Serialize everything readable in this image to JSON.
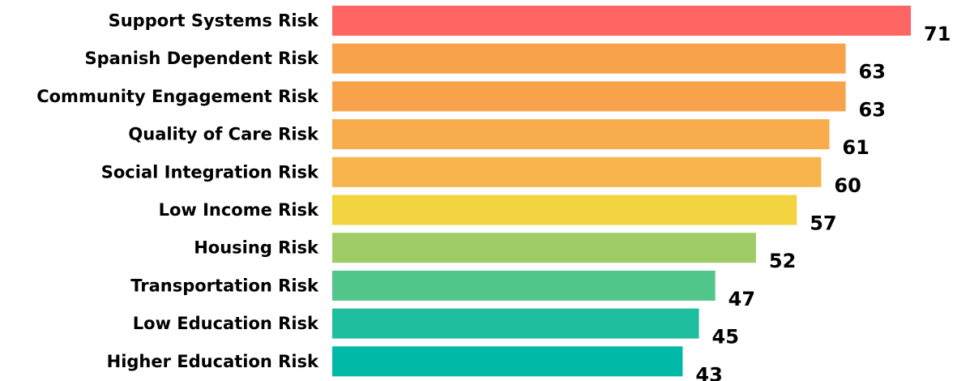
{
  "chart_data": {
    "type": "bar",
    "orientation": "horizontal",
    "title": "",
    "xlabel": "",
    "ylabel": "",
    "grid": false,
    "legend": "none",
    "categories": [
      "Support Systems Risk",
      "Spanish Dependent Risk",
      "Community Engagement Risk",
      "Quality of Care Risk",
      "Social Integration Risk",
      "Low Income Risk",
      "Housing Risk",
      "Transportation Risk",
      "Low Education Risk",
      "Higher Education Risk"
    ],
    "values": [
      71,
      63,
      63,
      61,
      60,
      57,
      52,
      47,
      45,
      43
    ],
    "value_labels": [
      "71",
      "63",
      "63",
      "61",
      "60",
      "57",
      "52",
      "47",
      "45",
      "43"
    ],
    "colors": [
      "#ff6562",
      "#f8a34c",
      "#f8a34c",
      "#f8ac4c",
      "#f8b44c",
      "#f2d340",
      "#a0cc68",
      "#52c68a",
      "#1fbe9e",
      "#00b9a6"
    ],
    "xlim": [
      0,
      71
    ]
  }
}
